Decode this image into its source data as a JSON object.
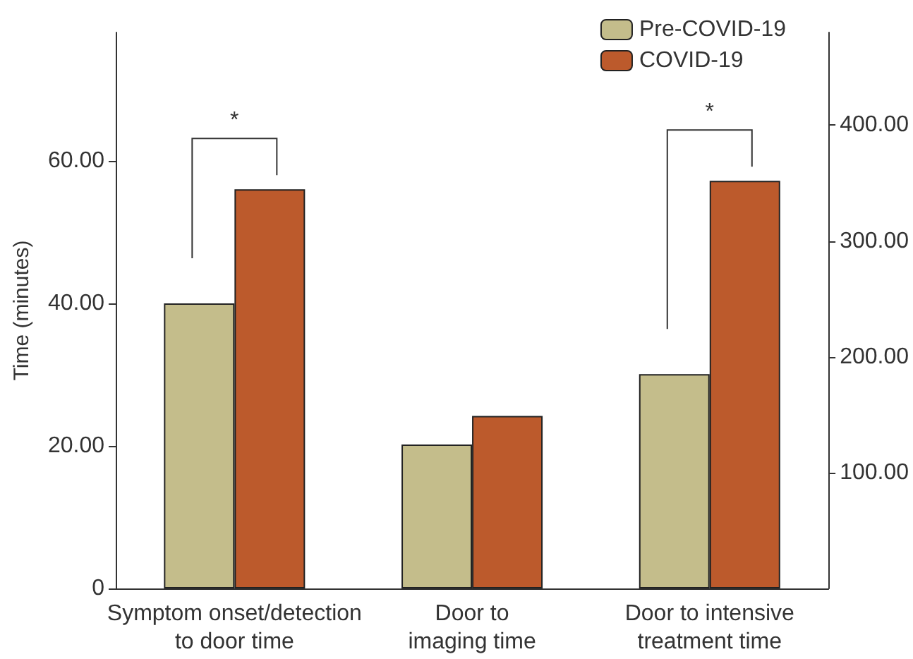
{
  "chart_data": {
    "type": "bar",
    "ylabel": "Time (minutes)",
    "categories": [
      "Symptom onset/detection\nto door time",
      "Door to\nimaging time",
      "Door to intensive\ntreatment time"
    ],
    "series": [
      {
        "name": "Pre-COVID-19",
        "color": "#c4bd8b",
        "values": [
          40,
          20.2,
          null
        ]
      },
      {
        "name": "COVID-19",
        "color": "#bc5a2c",
        "values": [
          56,
          24.2,
          null
        ]
      },
      {
        "color": "#c4bd8b",
        "axis": "y2",
        "values": [
          null,
          null,
          185
        ]
      },
      {
        "color": "#bc5a2c",
        "axis": "y2",
        "values": [
          null,
          null,
          352
        ]
      }
    ],
    "ylim": [
      0,
      78
    ],
    "yticks": [
      {
        "value": 0,
        "label": "0"
      },
      {
        "value": 20,
        "label": "20.00"
      },
      {
        "value": 40,
        "label": "40.00"
      },
      {
        "value": 60,
        "label": "60.00"
      }
    ],
    "y2lim": [
      0,
      480
    ],
    "y2ticks": [
      {
        "value": 100,
        "label": "100.00"
      },
      {
        "value": 200,
        "label": "200.00"
      },
      {
        "value": 300,
        "label": "300.00"
      },
      {
        "value": 400,
        "label": "400.00"
      }
    ],
    "annotations": [
      "*",
      "*"
    ],
    "legend": "top right",
    "grid": false
  }
}
